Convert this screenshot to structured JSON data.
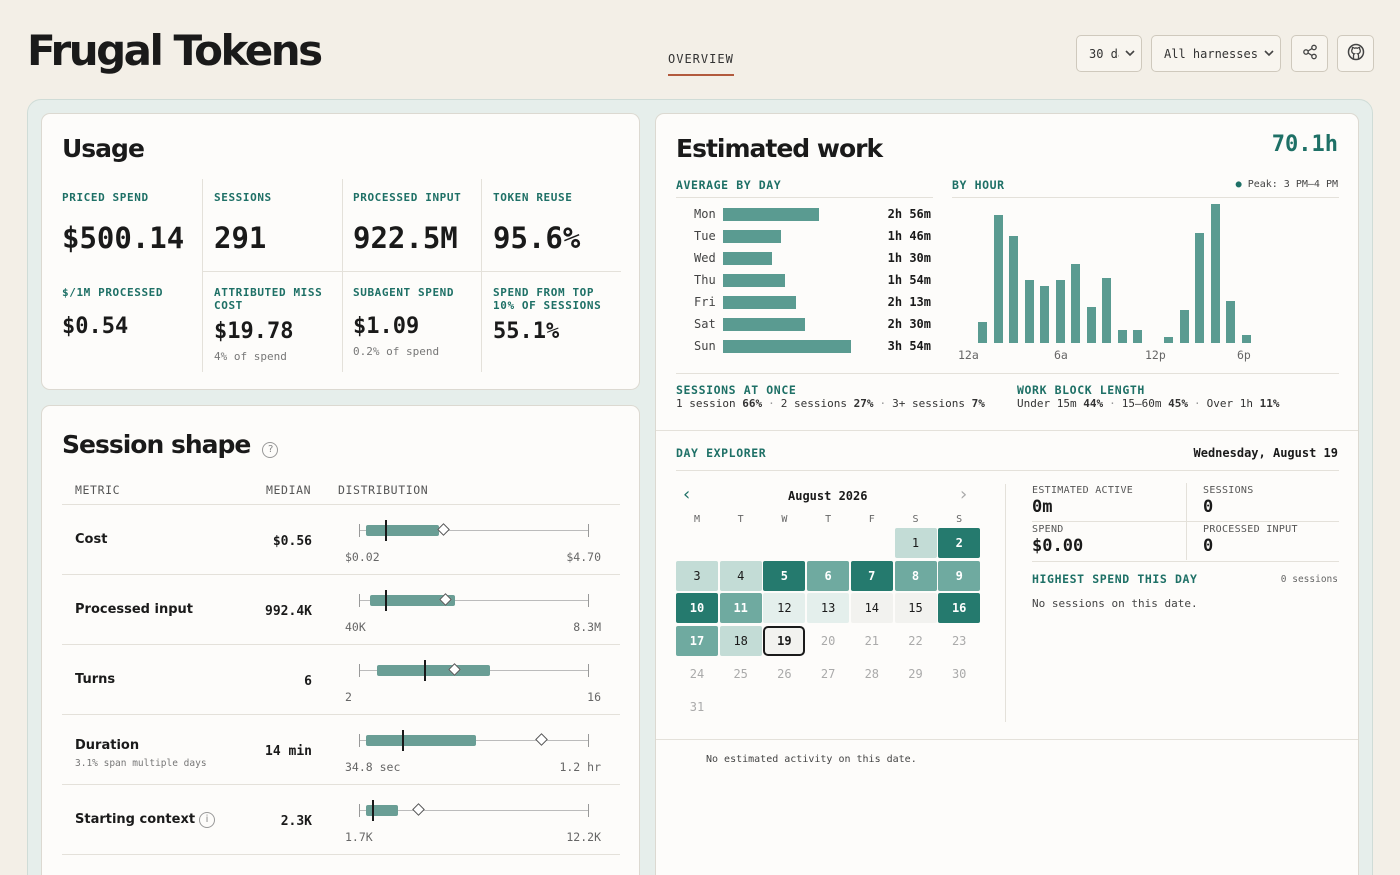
{
  "header": {
    "brand": "Frugal Tokens",
    "tab": "OVERVIEW",
    "range_select": "30 days",
    "harness_select": "All harnesses",
    "share_icon": "share-icon",
    "github_icon": "github-icon"
  },
  "usage": {
    "title": "Usage",
    "metrics": [
      {
        "label": "PRICED SPEND",
        "value": "$500.14",
        "sub": ""
      },
      {
        "label": "SESSIONS",
        "value": "291",
        "sub": ""
      },
      {
        "label": "PROCESSED INPUT",
        "value": "922.5M",
        "sub": ""
      },
      {
        "label": "TOKEN REUSE",
        "value": "95.6%",
        "sub": ""
      },
      {
        "label": "$/1M PROCESSED",
        "value": "$0.54",
        "sub": ""
      },
      {
        "label": "ATTRIBUTED MISS COST",
        "value": "$19.78",
        "sub": "4% of spend"
      },
      {
        "label": "SUBAGENT SPEND",
        "value": "$1.09",
        "sub": "0.2% of spend"
      },
      {
        "label": "SPEND FROM TOP 10% OF SESSIONS",
        "value": "55.1%",
        "sub": ""
      }
    ]
  },
  "session_shape": {
    "title": "Session shape",
    "help": "?",
    "columns": [
      "METRIC",
      "MEDIAN",
      "DISTRIBUTION"
    ],
    "rows": [
      {
        "name": "Cost",
        "sub": "",
        "median": "$0.56",
        "min_label": "$0.02",
        "max_label": "$4.70",
        "info": false,
        "q1": 0.03,
        "q3": 0.35,
        "med": 0.12,
        "mean": 0.37
      },
      {
        "name": "Processed input",
        "sub": "",
        "median": "992.4K",
        "min_label": "40K",
        "max_label": "8.3M",
        "info": false,
        "q1": 0.05,
        "q3": 0.42,
        "med": 0.12,
        "mean": 0.38
      },
      {
        "name": "Turns",
        "sub": "",
        "median": "6",
        "min_label": "2",
        "max_label": "16",
        "info": false,
        "q1": 0.08,
        "q3": 0.57,
        "med": 0.29,
        "mean": 0.42
      },
      {
        "name": "Duration",
        "sub": "3.1% span multiple days",
        "median": "14 min",
        "min_label": "34.8 sec",
        "max_label": "1.2 hr",
        "info": false,
        "q1": 0.03,
        "q3": 0.51,
        "med": 0.19,
        "mean": 0.8
      },
      {
        "name": "Starting context",
        "sub": "",
        "median": "2.3K",
        "min_label": "1.7K",
        "max_label": "12.2K",
        "info": true,
        "info_glyph": "i",
        "q1": 0.03,
        "q3": 0.17,
        "med": 0.06,
        "mean": 0.26
      }
    ]
  },
  "work": {
    "title": "Estimated work",
    "total": "70.1h",
    "avg_by_day_label": "AVERAGE BY DAY",
    "days": [
      {
        "day": "Mon",
        "value": "2h 56m",
        "hours": 2.93
      },
      {
        "day": "Tue",
        "value": "1h 46m",
        "hours": 1.77
      },
      {
        "day": "Wed",
        "value": "1h 30m",
        "hours": 1.5
      },
      {
        "day": "Thu",
        "value": "1h 54m",
        "hours": 1.9
      },
      {
        "day": "Fri",
        "value": "2h 13m",
        "hours": 2.22
      },
      {
        "day": "Sat",
        "value": "2h 30m",
        "hours": 2.5
      },
      {
        "day": "Sun",
        "value": "3h 54m",
        "hours": 3.9
      }
    ],
    "by_hour_label": "BY HOUR",
    "peak": "Peak: 3 PM–4 PM",
    "hourly": [
      0.15,
      0.92,
      0.77,
      0.45,
      0.41,
      0.45,
      0.57,
      0.26,
      0.47,
      0.09,
      0.09,
      0,
      0.04,
      0.24,
      0.79,
      1.0,
      0.3,
      0.06,
      0,
      0,
      0,
      0,
      0,
      0
    ],
    "hour_ticks": [
      "12a",
      "6a",
      "12p",
      "6p"
    ],
    "sessions_at_once_label": "SESSIONS AT ONCE",
    "sessions_at_once": [
      {
        "label": "1 session",
        "value": "66%"
      },
      {
        "label": "2 sessions",
        "value": "27%"
      },
      {
        "label": "3+ sessions",
        "value": "7%"
      }
    ],
    "work_block_label": "WORK BLOCK LENGTH",
    "work_block": [
      {
        "label": "Under 15m",
        "value": "44%"
      },
      {
        "label": "15–60m",
        "value": "45%"
      },
      {
        "label": "Over 1h",
        "value": "11%"
      }
    ],
    "separator": "·"
  },
  "explorer": {
    "label": "DAY EXPLORER",
    "selected_date": "Wednesday, August 19",
    "month": "August 2026",
    "prev": "‹",
    "next": "›",
    "dow": [
      "M",
      "T",
      "W",
      "T",
      "F",
      "S",
      "S"
    ],
    "first_offset": 5,
    "selected_day": 19,
    "future_from": 20,
    "days_in_month": 31,
    "levels": {
      "1": 1,
      "2": 3,
      "3": 1,
      "4": 1,
      "5": 3,
      "6": 2,
      "7": 3,
      "8": 2,
      "9": 2,
      "10": 3,
      "11": 2,
      "12": 0.5,
      "13": 0.5,
      "14": 0,
      "15": 0,
      "16": 3,
      "17": 2,
      "18": 1,
      "19": 0
    },
    "colors": {
      "l1": "#c3dcd6",
      "l2": "#6faaa0",
      "l3": "#257a6e",
      "l05": "#e4efec",
      "none": "#f2f2ef"
    },
    "estimated_active_label": "ESTIMATED ACTIVE",
    "estimated_active": "0m",
    "sessions_label": "SESSIONS",
    "sessions": "0",
    "spend_label": "SPEND",
    "spend": "$0.00",
    "processed_label": "PROCESSED INPUT",
    "processed": "0",
    "highest_label": "HIGHEST SPEND THIS DAY",
    "highest_count": "0 sessions",
    "no_sessions": "No sessions on this date.",
    "no_activity": "No estimated activity on this date."
  }
}
